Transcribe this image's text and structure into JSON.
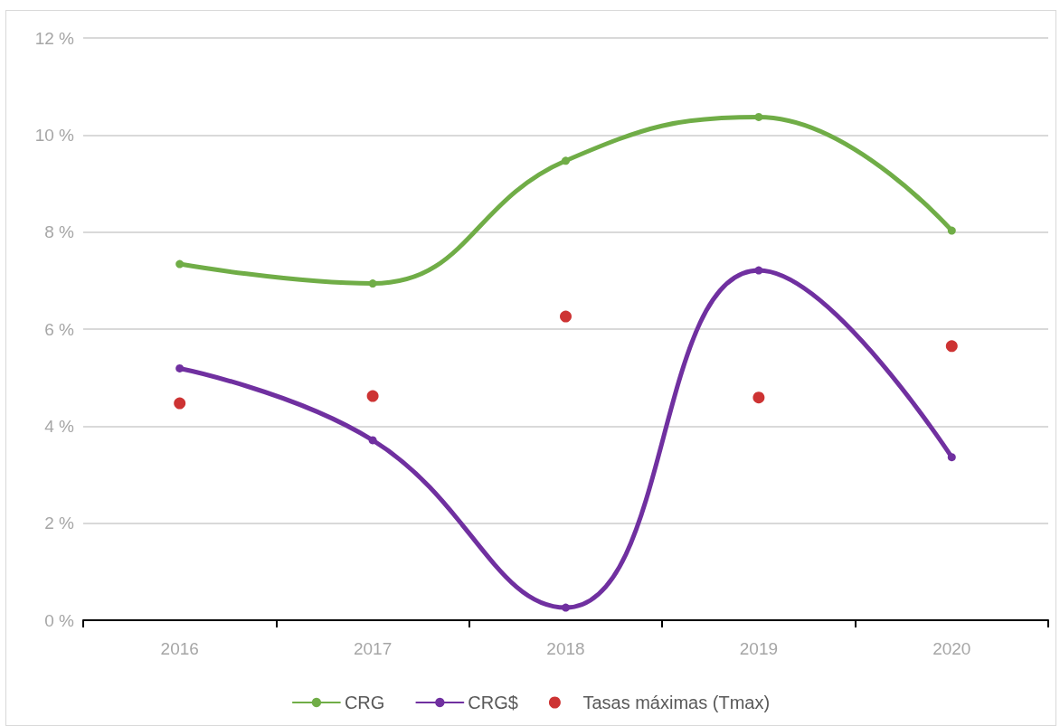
{
  "chart_data": {
    "type": "line",
    "categories": [
      "2016",
      "2017",
      "2018",
      "2019",
      "2020"
    ],
    "series": [
      {
        "name": "CRG",
        "color": "#70ad47",
        "values": [
          7.34,
          6.94,
          9.47,
          10.37,
          8.03
        ]
      },
      {
        "name": "CRG$",
        "color": "#7030a0",
        "values": [
          5.19,
          3.71,
          0.26,
          7.21,
          3.36
        ]
      },
      {
        "name": "Tasas máximas (Tmax)",
        "type": "scatter",
        "color": "#c00000",
        "values": [
          4.47,
          4.62,
          6.26,
          4.59,
          5.65
        ]
      }
    ],
    "ylim": [
      0,
      12
    ],
    "yticks": [
      {
        "value": 0,
        "label": "0 %"
      },
      {
        "value": 2,
        "label": "2 %"
      },
      {
        "value": 4,
        "label": "4 %"
      },
      {
        "value": 6,
        "label": "6 %"
      },
      {
        "value": 8,
        "label": "8 %"
      },
      {
        "value": 10,
        "label": "10 %"
      },
      {
        "value": 12,
        "label": "12 %"
      }
    ],
    "grid": "y",
    "legend": "bottom",
    "marker": "circle",
    "line_style": "solid"
  }
}
